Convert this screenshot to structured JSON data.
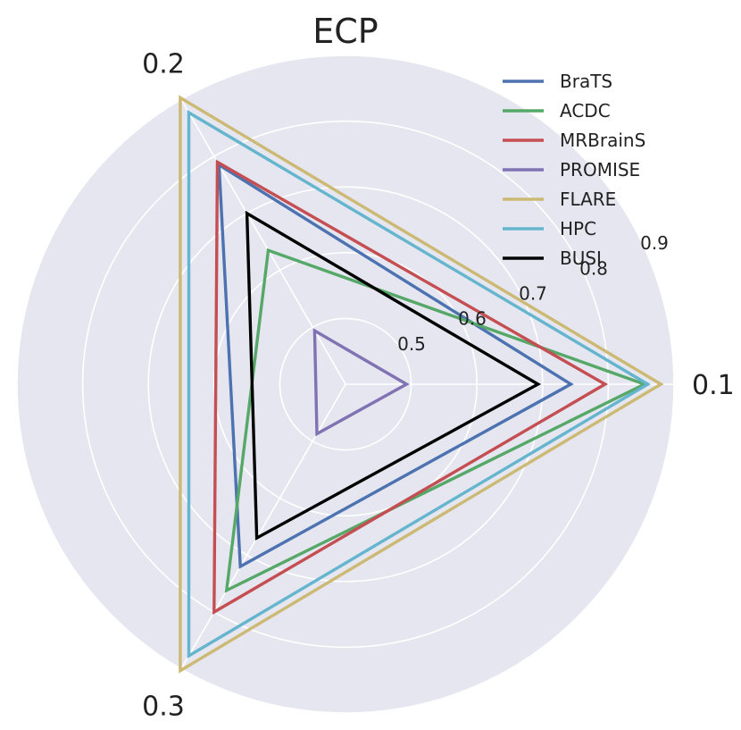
{
  "chart_data": {
    "type": "radar",
    "title": "ECP",
    "categories": [
      "0.1",
      "0.2",
      "0.3"
    ],
    "rlim": [
      0.4,
      0.9
    ],
    "r_ticks": [
      "0.5",
      "0.6",
      "0.7",
      "0.8",
      "0.9"
    ],
    "grid": true,
    "legend_position": "top-right",
    "background": "#e5e6f0",
    "series": [
      {
        "name": "BraTS",
        "color": "#4c72b0",
        "values": [
          0.743,
          0.785,
          0.72
        ]
      },
      {
        "name": "ACDC",
        "color": "#55a868",
        "values": [
          0.855,
          0.635,
          0.762
        ]
      },
      {
        "name": "MRBrainS",
        "color": "#c44e52",
        "values": [
          0.795,
          0.79,
          0.8
        ]
      },
      {
        "name": "PROMISE",
        "color": "#8172b3",
        "values": [
          0.493,
          0.494,
          0.487
        ]
      },
      {
        "name": "FLARE",
        "color": "#ccb974",
        "values": [
          0.88,
          0.903,
          0.903
        ]
      },
      {
        "name": "HPC",
        "color": "#64b5cd",
        "values": [
          0.86,
          0.877,
          0.877
        ]
      },
      {
        "name": "BUSI",
        "color": "#000000",
        "values": [
          0.693,
          0.7,
          0.67
        ]
      }
    ]
  }
}
